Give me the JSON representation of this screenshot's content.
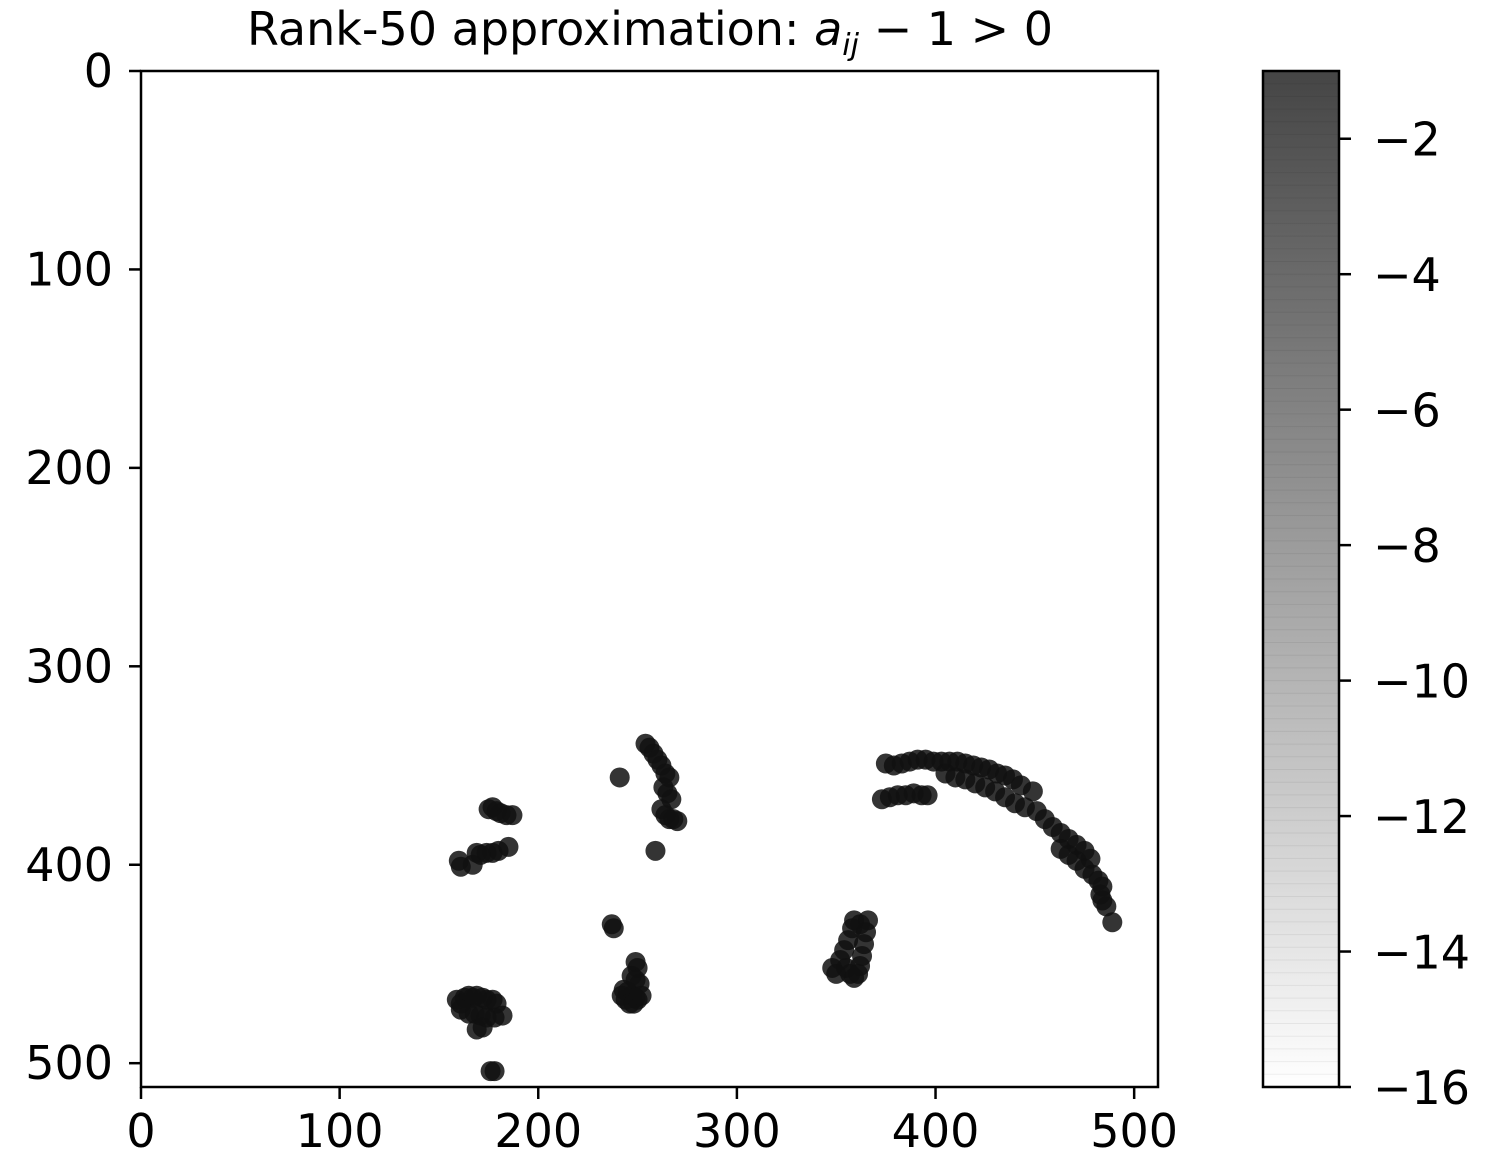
{
  "chart_data": [
    {
      "type": "scatter",
      "title_prefix": "Rank-50 approximation: ",
      "title_var": "a",
      "title_sub": "ij",
      "title_suffix": " − 1 > 0",
      "xlabel": "",
      "ylabel": "",
      "xlim": [
        0,
        512
      ],
      "ylim": [
        512,
        0
      ],
      "y_inverted": true,
      "xticks": [
        0,
        100,
        200,
        300,
        400,
        500
      ],
      "yticks": [
        0,
        100,
        200,
        300,
        400,
        500
      ],
      "grid": false,
      "marker_color": "#111111",
      "series": [
        {
          "points": [
            [
              160,
              398
            ],
            [
              161,
              401
            ],
            [
              167,
              400
            ],
            [
              169,
              394
            ],
            [
              171,
              395
            ],
            [
              174,
              394
            ],
            [
              177,
              394
            ],
            [
              180,
              393
            ],
            [
              185,
              391
            ],
            [
              175,
              372
            ],
            [
              177,
              371
            ],
            [
              179,
              373
            ],
            [
              181,
              374
            ],
            [
              184,
              375
            ],
            [
              187,
              375
            ],
            [
              159,
              468
            ],
            [
              161,
              470
            ],
            [
              163,
              467
            ],
            [
              165,
              466
            ],
            [
              167,
              467
            ],
            [
              169,
              466
            ],
            [
              172,
              467
            ],
            [
              174,
              468
            ],
            [
              177,
              468
            ],
            [
              179,
              470
            ],
            [
              161,
              473
            ],
            [
              165,
              475
            ],
            [
              168,
              475
            ],
            [
              171,
              476
            ],
            [
              174,
              477
            ],
            [
              178,
              477
            ],
            [
              182,
              476
            ],
            [
              169,
              483
            ],
            [
              172,
              482
            ],
            [
              176,
              504
            ],
            [
              178,
              504
            ],
            [
              241,
              356
            ],
            [
              254,
              339
            ],
            [
              256,
              341
            ],
            [
              258,
              344
            ],
            [
              260,
              347
            ],
            [
              262,
              350
            ],
            [
              264,
              354
            ],
            [
              266,
              356
            ],
            [
              263,
              361
            ],
            [
              265,
              364
            ],
            [
              267,
              367
            ],
            [
              262,
              372
            ],
            [
              264,
              375
            ],
            [
              266,
              377
            ],
            [
              268,
              377
            ],
            [
              270,
              378
            ],
            [
              259,
              393
            ],
            [
              237,
              430
            ],
            [
              238,
              432
            ],
            [
              249,
              449
            ],
            [
              250,
              452
            ],
            [
              247,
              456
            ],
            [
              249,
              458
            ],
            [
              251,
              460
            ],
            [
              243,
              463
            ],
            [
              245,
              464
            ],
            [
              247,
              466
            ],
            [
              249,
              467
            ],
            [
              242,
              466
            ],
            [
              244,
              468
            ],
            [
              246,
              470
            ],
            [
              248,
              470
            ],
            [
              250,
              468
            ],
            [
              252,
              466
            ],
            [
              348,
              452
            ],
            [
              350,
              455
            ],
            [
              352,
              448
            ],
            [
              354,
              443
            ],
            [
              356,
              438
            ],
            [
              358,
              432
            ],
            [
              359,
              428
            ],
            [
              362,
              430
            ],
            [
              366,
              428
            ],
            [
              365,
              434
            ],
            [
              364,
              440
            ],
            [
              363,
              446
            ],
            [
              362,
              451
            ],
            [
              361,
              455
            ],
            [
              359,
              457
            ],
            [
              357,
              455
            ],
            [
              355,
              452
            ],
            [
              373,
              367
            ],
            [
              377,
              366
            ],
            [
              381,
              365
            ],
            [
              385,
              365
            ],
            [
              389,
              364
            ],
            [
              393,
              365
            ],
            [
              396,
              365
            ],
            [
              375,
              349
            ],
            [
              379,
              350
            ],
            [
              383,
              349
            ],
            [
              387,
              348
            ],
            [
              391,
              347
            ],
            [
              395,
              347
            ],
            [
              399,
              348
            ],
            [
              403,
              348
            ],
            [
              407,
              348
            ],
            [
              411,
              348
            ],
            [
              415,
              349
            ],
            [
              419,
              350
            ],
            [
              423,
              351
            ],
            [
              427,
              352
            ],
            [
              431,
              354
            ],
            [
              435,
              355
            ],
            [
              439,
              357
            ],
            [
              443,
              360
            ],
            [
              405,
              354
            ],
            [
              410,
              356
            ],
            [
              415,
              357
            ],
            [
              420,
              359
            ],
            [
              425,
              361
            ],
            [
              430,
              363
            ],
            [
              435,
              366
            ],
            [
              440,
              369
            ],
            [
              445,
              371
            ],
            [
              449,
              363
            ],
            [
              451,
              373
            ],
            [
              455,
              377
            ],
            [
              459,
              381
            ],
            [
              463,
              384
            ],
            [
              467,
              387
            ],
            [
              471,
              390
            ],
            [
              475,
              393
            ],
            [
              478,
              397
            ],
            [
              463,
              392
            ],
            [
              467,
              395
            ],
            [
              471,
              398
            ],
            [
              475,
              402
            ],
            [
              479,
              405
            ],
            [
              482,
              408
            ],
            [
              484,
              411
            ],
            [
              483,
              415
            ],
            [
              484,
              418
            ],
            [
              486,
              421
            ],
            [
              489,
              429
            ]
          ]
        }
      ],
      "colorbar": {
        "min": -16,
        "max": -1,
        "ticks": [
          -2,
          -4,
          -6,
          -8,
          -10,
          -12,
          -14,
          -16
        ],
        "tick_labels": [
          "−2",
          "−4",
          "−6",
          "−8",
          "−10",
          "−12",
          "−14",
          "−16"
        ],
        "color_low": "#ffffff",
        "color_high": "#454545"
      }
    }
  ]
}
